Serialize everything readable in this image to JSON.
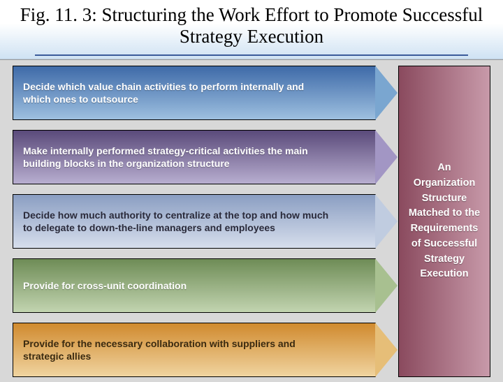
{
  "title": "Fig. 11. 3:  Structuring the Work Effort to Promote Successful Strategy Execution",
  "background_color": "#d8d8d8",
  "arrows": [
    {
      "text": "Decide which value chain activities to perform internally and which ones to outsource",
      "gradient_from": "#3e6aa8",
      "gradient_to": "#9ec0e0",
      "point_color": "#7aa6d0"
    },
    {
      "text": "Make internally performed strategy-critical activities the main building blocks in the organization structure",
      "gradient_from": "#5a4a7a",
      "gradient_to": "#b8aed0",
      "point_color": "#a296c4"
    },
    {
      "text": "Decide how much authority to centralize at the top and how much to delegate to down-the-line managers and employees",
      "gradient_from": "#8a9ec2",
      "gradient_to": "#d6deec",
      "point_color": "#c0cce0",
      "text_color": "#2a2a3a"
    },
    {
      "text": "Provide for cross-unit coordination",
      "gradient_from": "#6e8c56",
      "gradient_to": "#c2d4b0",
      "point_color": "#a8c090"
    },
    {
      "text": "Provide for the necessary collaboration with suppliers and strategic allies",
      "gradient_from": "#d08a2e",
      "gradient_to": "#f0d4a0",
      "point_color": "#e6be78",
      "text_color": "#3a2a10"
    }
  ],
  "right_panel": {
    "text": "An Organization Structure Matched to the Requirements of Successful Strategy Execution",
    "gradient_from": "#8a4a5e",
    "gradient_to": "#c89aaa"
  },
  "fonts": {
    "title_family": "Times New Roman",
    "title_size_pt": 20,
    "body_size_pt": 10.5,
    "body_weight": "bold"
  }
}
